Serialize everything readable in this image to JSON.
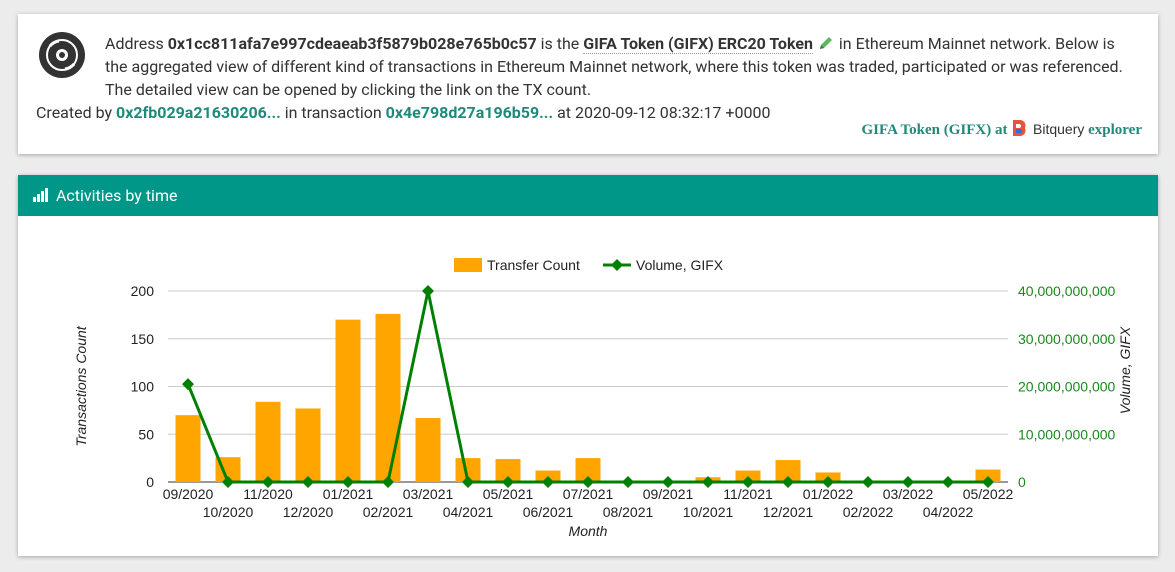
{
  "header": {
    "address_prefix": "Address",
    "address": "0x1cc811afa7e997cdeaeab3f5879b028e765b0c57",
    "is_the": "is the",
    "token_name": "GIFA Token (GIFX) ERC20 Token",
    "line1_tail": "in Ethereum Mainnet network. Below is",
    "line2": "the aggregated view of different kind of transactions in Ethereum Mainnet network, where this token was traded, participated or was referenced.",
    "line3": "The detailed view can be opened by clicking the link on the TX count.",
    "created_by": "Created by",
    "creator": "0x2fb029a21630206...",
    "in_transaction": "in transaction",
    "tx": "0x4e798d27a196b59...",
    "at_time": "at 2020-09-12 08:32:17 +0000",
    "brand_token": "GIFA Token (GIFX)",
    "brand_at": "at",
    "brand_name": "Bitquery",
    "brand_explorer": "explorer"
  },
  "panel": {
    "title": "Activities by time"
  },
  "colors": {
    "bar": "#ffa500",
    "line": "#008000",
    "header": "#009688",
    "link": "#1e8a7a"
  },
  "chart_data": {
    "type": "bar",
    "x": [
      "09/2020",
      "10/2020",
      "11/2020",
      "12/2020",
      "01/2021",
      "02/2021",
      "03/2021",
      "04/2021",
      "05/2021",
      "06/2021",
      "07/2021",
      "08/2021",
      "09/2021",
      "10/2021",
      "11/2021",
      "12/2021",
      "01/2022",
      "02/2022",
      "03/2022",
      "04/2022",
      "05/2022"
    ],
    "series": [
      {
        "name": "Transfer Count",
        "kind": "bar",
        "axis": "left",
        "values": [
          70,
          26,
          84,
          77,
          170,
          176,
          67,
          25,
          24,
          12,
          25,
          0,
          0,
          5,
          12,
          23,
          10,
          0,
          0,
          0,
          13
        ]
      },
      {
        "name": "Volume, GIFX",
        "kind": "line",
        "axis": "right",
        "values": [
          20500000000,
          0,
          0,
          0,
          0,
          0,
          40000000000,
          0,
          0,
          0,
          0,
          0,
          0,
          0,
          0,
          0,
          0,
          0,
          0,
          0,
          0
        ]
      }
    ],
    "xlabel": "Month",
    "ylabel": "Transactions Count",
    "y2label": "Volume, GIFX",
    "ylim": [
      0,
      200
    ],
    "y2lim": [
      0,
      40000000000
    ],
    "yticks": [
      "0",
      "50",
      "100",
      "150",
      "200"
    ],
    "y2ticks": [
      "0",
      "10,000,000,000",
      "20,000,000,000",
      "30,000,000,000",
      "40,000,000,000"
    ],
    "grid": true,
    "legend_position": "top-center"
  }
}
